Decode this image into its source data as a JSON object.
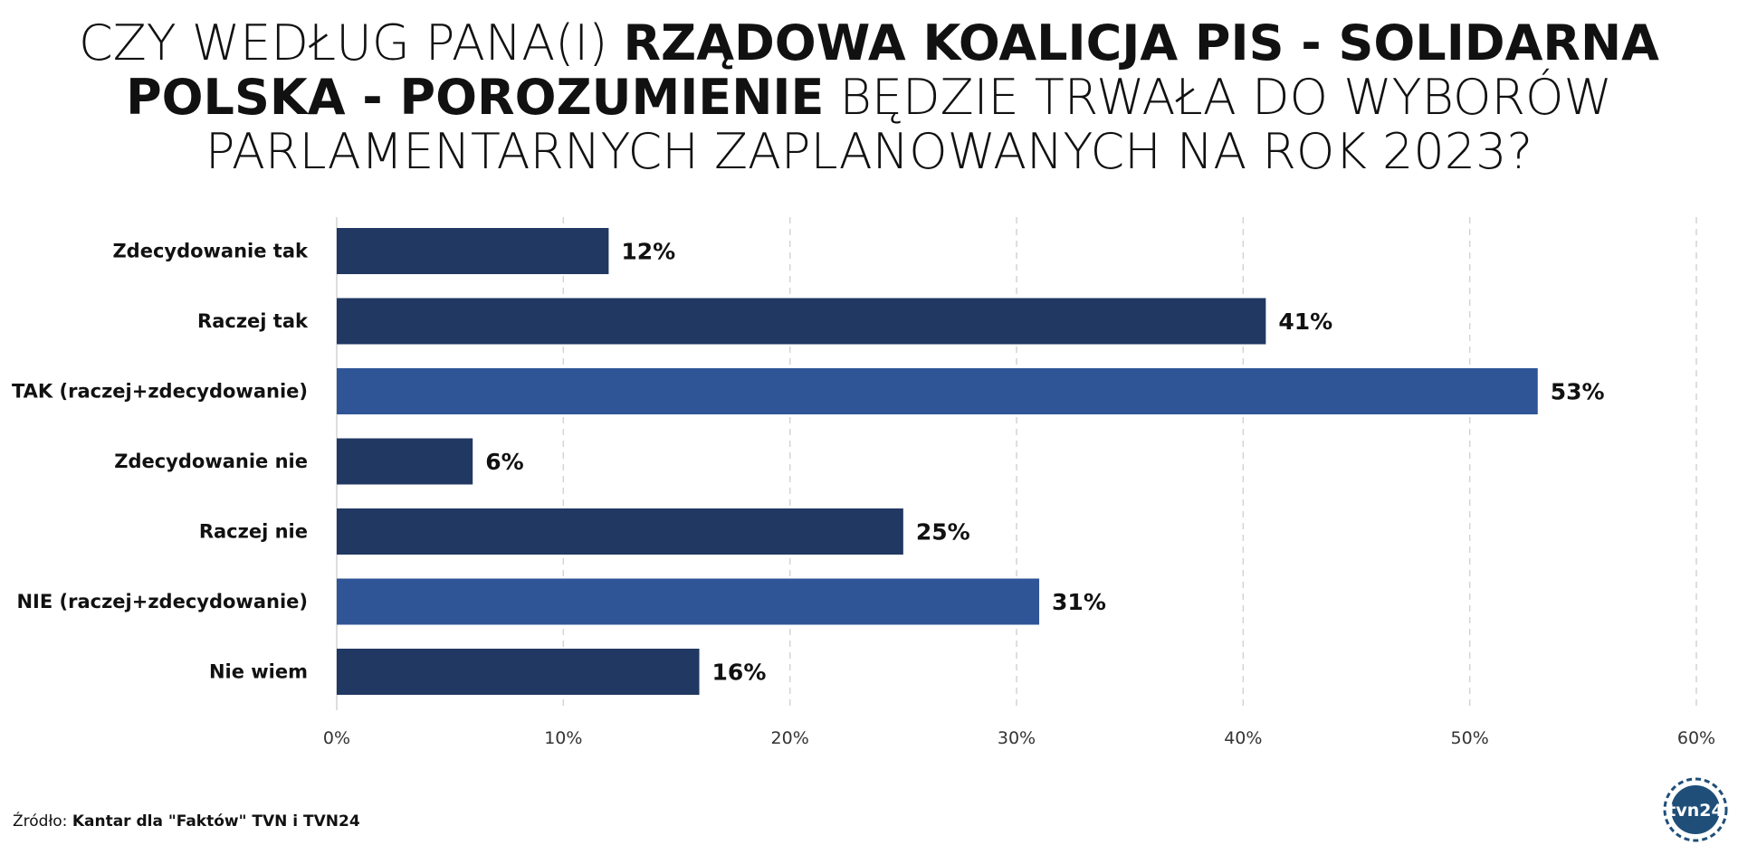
{
  "title": {
    "part1": "CZY WEDŁUG PANA(I) ",
    "part2": "RZĄDOWA KOALICJA PIS - SOLIDARNA POLSKA - POROZUMIENIE",
    "part3": " BĘDZIE TRWAŁA DO WYBORÓW PARLAMENTARNYCH ZAPLANOWANYCH NA ROK 2023?"
  },
  "chart_data": {
    "type": "bar",
    "orientation": "horizontal",
    "categories": [
      "Zdecydowanie tak",
      "Raczej tak",
      "TAK (raczej+zdecydowanie)",
      "Zdecydowanie nie",
      "Raczej nie",
      "NIE (raczej+zdecydowanie)",
      "Nie wiem"
    ],
    "values": [
      12,
      41,
      53,
      6,
      25,
      31,
      16
    ],
    "value_labels": [
      "12%",
      "41%",
      "53%",
      "6%",
      "25%",
      "31%",
      "16%"
    ],
    "bar_colors": [
      "#213862",
      "#213862",
      "#2F5597",
      "#213862",
      "#213862",
      "#2F5597",
      "#213862"
    ],
    "xlim": [
      0,
      60
    ],
    "xticks": [
      0,
      10,
      20,
      30,
      40,
      50,
      60
    ],
    "xtick_labels": [
      "0%",
      "10%",
      "20%",
      "30%",
      "40%",
      "50%",
      "60%"
    ],
    "grid": "vertical dashed",
    "xlabel": "",
    "ylabel": ""
  },
  "source": {
    "prefix": "Źródło: ",
    "text": "Kantar dla \"Faktów\" TVN i TVN24"
  },
  "logo": {
    "text": "tvn24",
    "color": "#1F4E79"
  }
}
